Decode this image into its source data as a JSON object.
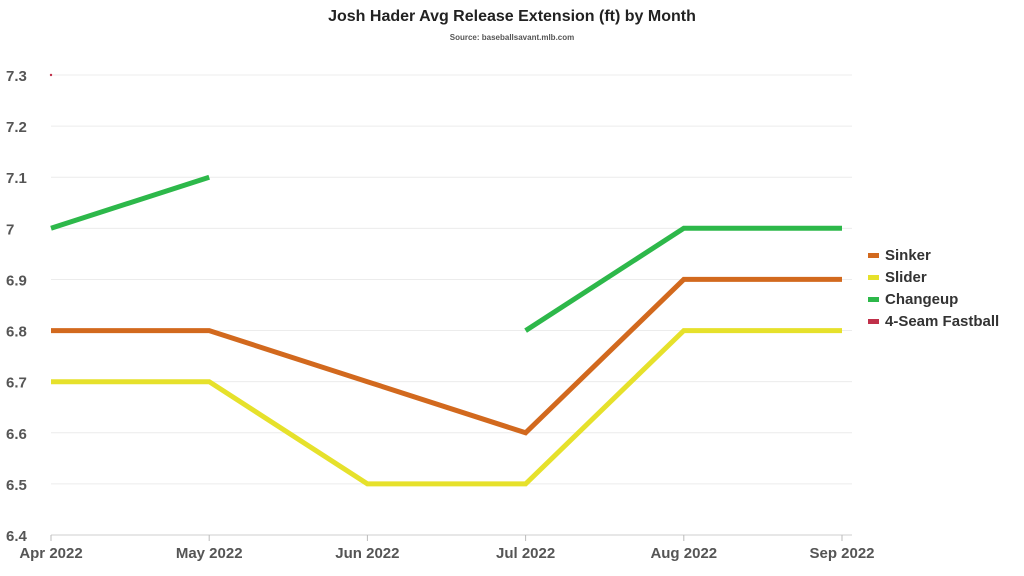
{
  "chart_data": {
    "type": "line",
    "title": "Josh Hader Avg Release Extension (ft) by Month",
    "subtitle": "Source: baseballsavant.mlb.com",
    "categories": [
      "Apr 2022",
      "May 2022",
      "Jun 2022",
      "Jul 2022",
      "Aug 2022",
      "Sep 2022"
    ],
    "yticks": [
      "6.4",
      "6.5",
      "6.6",
      "6.7",
      "6.8",
      "6.9",
      "7",
      "7.1",
      "7.2",
      "7.3"
    ],
    "ylim": [
      6.4,
      7.3
    ],
    "grid": true,
    "legend_position": "right",
    "series": [
      {
        "name": "Sinker",
        "color": "#d2691e",
        "values": [
          6.8,
          6.8,
          6.7,
          6.6,
          6.9,
          6.9
        ]
      },
      {
        "name": "Slider",
        "color": "#e6e12b",
        "values": [
          6.7,
          6.7,
          6.5,
          6.5,
          6.8,
          6.8
        ]
      },
      {
        "name": "Changeup",
        "color": "#2db84a",
        "values": [
          7.0,
          7.1,
          null,
          6.8,
          7.0,
          7.0
        ]
      },
      {
        "name": "4-Seam Fastball",
        "color": "#c0304a",
        "values": [
          7.3,
          null,
          null,
          null,
          null,
          null
        ]
      }
    ]
  }
}
